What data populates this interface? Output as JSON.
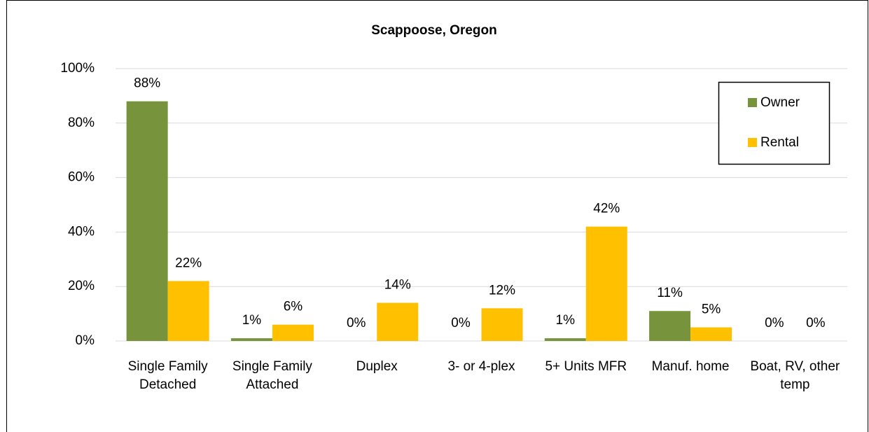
{
  "chart_data": {
    "type": "bar",
    "title": "Scappoose, Oregon",
    "categories": [
      "Single Family Detached",
      "Single Family Attached",
      "Duplex",
      "3- or 4-plex",
      "5+ Units MFR",
      "Manuf. home",
      "Boat, RV, other temp"
    ],
    "series": [
      {
        "name": "Owner",
        "color": "#77933c",
        "values": [
          88,
          1,
          0,
          0,
          1,
          11,
          0
        ],
        "value_labels": [
          "88%",
          "1%",
          "0%",
          "0%",
          "1%",
          "11%",
          "0%"
        ]
      },
      {
        "name": "Rental",
        "color": "#ffc000",
        "values": [
          22,
          6,
          14,
          12,
          42,
          5,
          0
        ],
        "value_labels": [
          "22%",
          "6%",
          "14%",
          "12%",
          "42%",
          "5%",
          "0%"
        ]
      }
    ],
    "ylim": [
      0,
      100
    ],
    "yticks": [
      {
        "value": 0,
        "label": "0%"
      },
      {
        "value": 20,
        "label": "20%"
      },
      {
        "value": 40,
        "label": "40%"
      },
      {
        "value": 60,
        "label": "60%"
      },
      {
        "value": 80,
        "label": "80%"
      },
      {
        "value": 100,
        "label": "100%"
      }
    ],
    "grid": true,
    "legend": "upper right"
  }
}
